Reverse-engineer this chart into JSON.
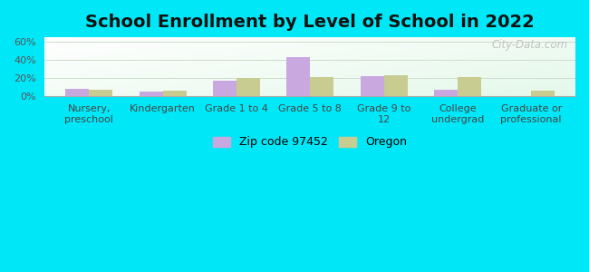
{
  "title": "School Enrollment by Level of School in 2022",
  "categories": [
    "Nursery,\npreschool",
    "Kindergarten",
    "Grade 1 to 4",
    "Grade 5 to 8",
    "Grade 9 to\n12",
    "College\nundergrad",
    "Graduate or\nprofessional"
  ],
  "zip_values": [
    7.5,
    5.0,
    17.0,
    43.0,
    21.5,
    7.0,
    0.0
  ],
  "oregon_values": [
    6.5,
    6.0,
    20.0,
    21.0,
    22.5,
    21.0,
    6.0
  ],
  "zip_color": "#c9a8e0",
  "oregon_color": "#c8cc90",
  "ylim": [
    0,
    65
  ],
  "yticks": [
    0,
    20,
    40,
    60
  ],
  "ytick_labels": [
    "0%",
    "20%",
    "40%",
    "60%"
  ],
  "background_outer": "#00e8f8",
  "watermark": "City-Data.com",
  "legend_zip_label": "Zip code 97452",
  "legend_oregon_label": "Oregon",
  "title_fontsize": 14,
  "tick_fontsize": 8,
  "legend_fontsize": 9,
  "bar_width": 0.32,
  "grid_color": "#ccddcc"
}
